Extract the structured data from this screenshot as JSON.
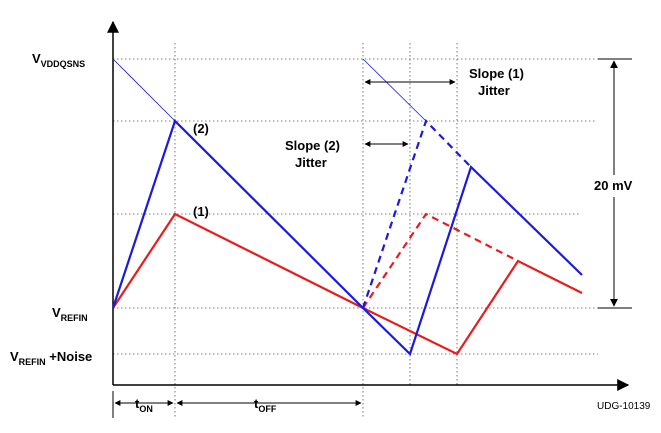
{
  "labels": {
    "v_vddqsns_main": "V",
    "v_vddqsns_sub": "VDDQSNS",
    "v_refin_main": "V",
    "v_refin_sub": "REFIN",
    "v_refin_noise_main": "V",
    "v_refin_noise_sub": "REFIN",
    "v_refin_noise_suffix": " +Noise",
    "marker_2": "(2)",
    "marker_1": "(1)",
    "slope1_line1": "Slope (1)",
    "slope1_line2": "Jitter",
    "slope2_line1": "Slope (2)",
    "slope2_line2": "Jitter",
    "amplitude": "20 mV",
    "t_on_main": "t",
    "t_on_sub": "ON",
    "t_off_main": "t",
    "t_off_sub": "OFF",
    "figure_id": "UDG-10139"
  },
  "colors": {
    "waveform_1": "#e81c1c",
    "waveform_2": "#1a1adc",
    "axis": "#000000",
    "guide": "#555555"
  }
}
